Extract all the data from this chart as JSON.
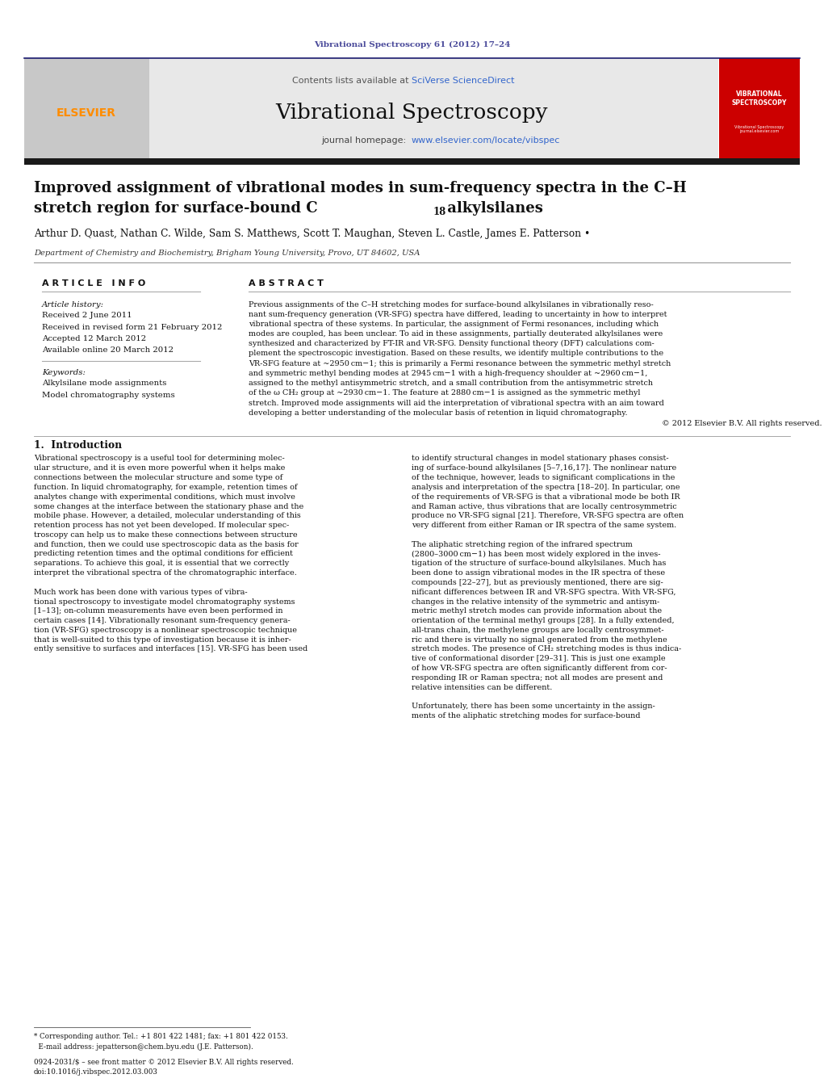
{
  "page_width": 10.21,
  "page_height": 13.51,
  "bg_color": "#ffffff",
  "journal_ref_text": "Vibrational Spectroscopy 61 (2012) 17–24",
  "journal_ref_color": "#4a4a9a",
  "header_bg_color": "#e8e8e8",
  "header_text": "Vibrational Spectroscopy",
  "contents_text": "Contents lists available at SciVerse ScienceDirect",
  "sciverse_color": "#3366cc",
  "journal_url": "www.elsevier.com/locate/vibspec",
  "journal_url_color": "#3366cc",
  "elsevier_color": "#ff8c00",
  "article_title_line1": "Improved assignment of vibrational modes in sum-frequency spectra in the C–H",
  "article_title_line2": "stretch region for surface-bound C",
  "article_title_line2b": "18",
  "article_title_line2c": " alkylsilanes",
  "authors": "Arthur D. Quast, Nathan C. Wilde, Sam S. Matthews, Scott T. Maughan, Steven L. Castle, James E. Patterson",
  "affiliation": "Department of Chemistry and Biochemistry, Brigham Young University, Provo, UT 84602, USA",
  "article_info_title": "A R T I C L E   I N F O",
  "abstract_title": "A B S T R A C T",
  "article_history_label": "Article history:",
  "received_date": "Received 2 June 2011",
  "revised_date": "Received in revised form 21 February 2012",
  "accepted_date": "Accepted 12 March 2012",
  "available_date": "Available online 20 March 2012",
  "keywords_label": "Keywords:",
  "keyword1": "Alkylsilane mode assignments",
  "keyword2": "Model chromatography systems",
  "copyright_text": "© 2012 Elsevier B.V. All rights reserved.",
  "intro_title": "1.  Introduction",
  "footer_text1": "Corresponding author. Tel.: +1 801 422 1481; fax: +1 801 422 0153.",
  "footer_text2": "E-mail address: jepatterson@chem.byu.edu (J.E. Patterson).",
  "footer_text3": "0924-2031/$ – see front matter © 2012 Elsevier B.V. All rights reserved.",
  "footer_text4": "doi:10.1016/j.vibspec.2012.03.003",
  "header_bar_color": "#1a1a6e",
  "dark_bar_color": "#1a1a1a",
  "red_box_color": "#cc0000",
  "abstract_lines": [
    "Previous assignments of the C–H stretching modes for surface-bound alkylsilanes in vibrationally reso-",
    "nant sum-frequency generation (VR-SFG) spectra have differed, leading to uncertainty in how to interpret",
    "vibrational spectra of these systems. In particular, the assignment of Fermi resonances, including which",
    "modes are coupled, has been unclear. To aid in these assignments, partially deuterated alkylsilanes were",
    "synthesized and characterized by FT-IR and VR-SFG. Density functional theory (DFT) calculations com-",
    "plement the spectroscopic investigation. Based on these results, we identify multiple contributions to the",
    "VR-SFG feature at ~2950 cm−1; this is primarily a Fermi resonance between the symmetric methyl stretch",
    "and symmetric methyl bending modes at 2945 cm−1 with a high-frequency shoulder at ~2960 cm−1,",
    "assigned to the methyl antisymmetric stretch, and a small contribution from the antisymmetric stretch",
    "of the ω CH₂ group at ~2930 cm−1. The feature at 2880 cm−1 is assigned as the symmetric methyl",
    "stretch. Improved mode assignments will aid the interpretation of vibrational spectra with an aim toward",
    "developing a better understanding of the molecular basis of retention in liquid chromatography."
  ],
  "col1_lines": [
    "Vibrational spectroscopy is a useful tool for determining molec-",
    "ular structure, and it is even more powerful when it helps make",
    "connections between the molecular structure and some type of",
    "function. In liquid chromatography, for example, retention times of",
    "analytes change with experimental conditions, which must involve",
    "some changes at the interface between the stationary phase and the",
    "mobile phase. However, a detailed, molecular understanding of this",
    "retention process has not yet been developed. If molecular spec-",
    "troscopy can help us to make these connections between structure",
    "and function, then we could use spectroscopic data as the basis for",
    "predicting retention times and the optimal conditions for efficient",
    "separations. To achieve this goal, it is essential that we correctly",
    "interpret the vibrational spectra of the chromatographic interface.",
    "",
    "Much work has been done with various types of vibra-",
    "tional spectroscopy to investigate model chromatography systems",
    "[1–13]; on-column measurements have even been performed in",
    "certain cases [14]. Vibrationally resonant sum-frequency genera-",
    "tion (VR-SFG) spectroscopy is a nonlinear spectroscopic technique",
    "that is well-suited to this type of investigation because it is inher-",
    "ently sensitive to surfaces and interfaces [15]. VR-SFG has been used"
  ],
  "col2_lines": [
    "to identify structural changes in model stationary phases consist-",
    "ing of surface-bound alkylsilanes [5–7,16,17]. The nonlinear nature",
    "of the technique, however, leads to significant complications in the",
    "analysis and interpretation of the spectra [18–20]. In particular, one",
    "of the requirements of VR-SFG is that a vibrational mode be both IR",
    "and Raman active, thus vibrations that are locally centrosymmetric",
    "produce no VR-SFG signal [21]. Therefore, VR-SFG spectra are often",
    "very different from either Raman or IR spectra of the same system.",
    "",
    "The aliphatic stretching region of the infrared spectrum",
    "(2800–3000 cm−1) has been most widely explored in the inves-",
    "tigation of the structure of surface-bound alkylsilanes. Much has",
    "been done to assign vibrational modes in the IR spectra of these",
    "compounds [22–27], but as previously mentioned, there are sig-",
    "nificant differences between IR and VR-SFG spectra. With VR-SFG,",
    "changes in the relative intensity of the symmetric and antisym-",
    "metric methyl stretch modes can provide information about the",
    "orientation of the terminal methyl groups [28]. In a fully extended,",
    "all-trans chain, the methylene groups are locally centrosymmet-",
    "ric and there is virtually no signal generated from the methylene",
    "stretch modes. The presence of CH₂ stretching modes is thus indica-",
    "tive of conformational disorder [29–31]. This is just one example",
    "of how VR-SFG spectra are often significantly different from cor-",
    "responding IR or Raman spectra; not all modes are present and",
    "relative intensities can be different.",
    "",
    "Unfortunately, there has been some uncertainty in the assign-",
    "ments of the aliphatic stretching modes for surface-bound"
  ]
}
